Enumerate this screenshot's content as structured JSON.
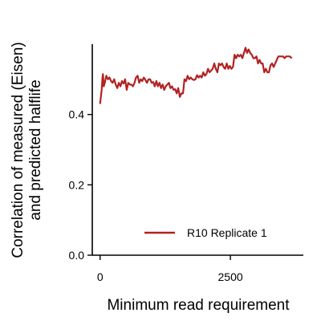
{
  "chart_data": {
    "type": "line",
    "xlabel": "Minimum read requirement",
    "ylabel_lines": [
      "Correlation of measured (Eisen)",
      "and predicted halflife"
    ],
    "xlim": [
      -150,
      3900
    ],
    "ylim": [
      0,
      0.6
    ],
    "xticks": [
      0,
      2500
    ],
    "xtick_labels": [
      "0",
      "2500"
    ],
    "yticks": [
      0.0,
      0.2,
      0.4
    ],
    "ytick_labels": [
      "0.0",
      "0.2",
      "0.4"
    ],
    "grid": false,
    "legend_position": "lower-right",
    "series": [
      {
        "name": "R10 Replicate 1",
        "color": "#b22222",
        "x": [
          0,
          15,
          30,
          45,
          55,
          70,
          90,
          120,
          150,
          180,
          210,
          240,
          270,
          300,
          330,
          360,
          390,
          420,
          450,
          480,
          510,
          540,
          570,
          600,
          630,
          660,
          690,
          720,
          750,
          780,
          810,
          840,
          870,
          900,
          930,
          960,
          990,
          1020,
          1050,
          1080,
          1110,
          1140,
          1170,
          1200,
          1230,
          1260,
          1290,
          1320,
          1350,
          1380,
          1410,
          1440,
          1470,
          1500,
          1530,
          1560,
          1590,
          1620,
          1650,
          1680,
          1710,
          1740,
          1770,
          1800,
          1830,
          1860,
          1890,
          1920,
          1950,
          1980,
          2010,
          2040,
          2070,
          2100,
          2130,
          2160,
          2190,
          2220,
          2250,
          2280,
          2310,
          2340,
          2370,
          2400,
          2430,
          2460,
          2490,
          2520,
          2550,
          2580,
          2610,
          2640,
          2670,
          2700,
          2730,
          2760,
          2790,
          2820,
          2850,
          2880,
          2910,
          2940,
          2970,
          3000,
          3030,
          3060,
          3090,
          3120,
          3150,
          3180,
          3210,
          3240,
          3270,
          3300,
          3330,
          3360,
          3390,
          3420,
          3450,
          3480,
          3510,
          3540,
          3570,
          3600,
          3640,
          3680
        ],
        "y": [
          0.43,
          0.45,
          0.47,
          0.505,
          0.515,
          0.48,
          0.49,
          0.51,
          0.5,
          0.505,
          0.495,
          0.49,
          0.5,
          0.485,
          0.475,
          0.49,
          0.48,
          0.495,
          0.488,
          0.5,
          0.47,
          0.49,
          0.485,
          0.485,
          0.48,
          0.49,
          0.505,
          0.51,
          0.49,
          0.5,
          0.495,
          0.505,
          0.498,
          0.49,
          0.5,
          0.5,
          0.49,
          0.492,
          0.48,
          0.495,
          0.48,
          0.49,
          0.475,
          0.485,
          0.47,
          0.48,
          0.485,
          0.49,
          0.475,
          0.48,
          0.47,
          0.472,
          0.46,
          0.475,
          0.45,
          0.46,
          0.46,
          0.5,
          0.495,
          0.51,
          0.5,
          0.505,
          0.5,
          0.498,
          0.5,
          0.512,
          0.505,
          0.51,
          0.505,
          0.52,
          0.51,
          0.515,
          0.53,
          0.52,
          0.525,
          0.53,
          0.545,
          0.53,
          0.52,
          0.545,
          0.54,
          0.545,
          0.535,
          0.53,
          0.545,
          0.53,
          0.538,
          0.53,
          0.535,
          0.57,
          0.56,
          0.57,
          0.565,
          0.57,
          0.56,
          0.575,
          0.59,
          0.575,
          0.585,
          0.575,
          0.57,
          0.56,
          0.56,
          0.565,
          0.545,
          0.555,
          0.545,
          0.545,
          0.52,
          0.53,
          0.52,
          0.52,
          0.54,
          0.545,
          0.535,
          0.545,
          0.555,
          0.565,
          0.565,
          0.565,
          0.565,
          0.56,
          0.565,
          0.565,
          0.565,
          0.56
        ]
      }
    ]
  }
}
